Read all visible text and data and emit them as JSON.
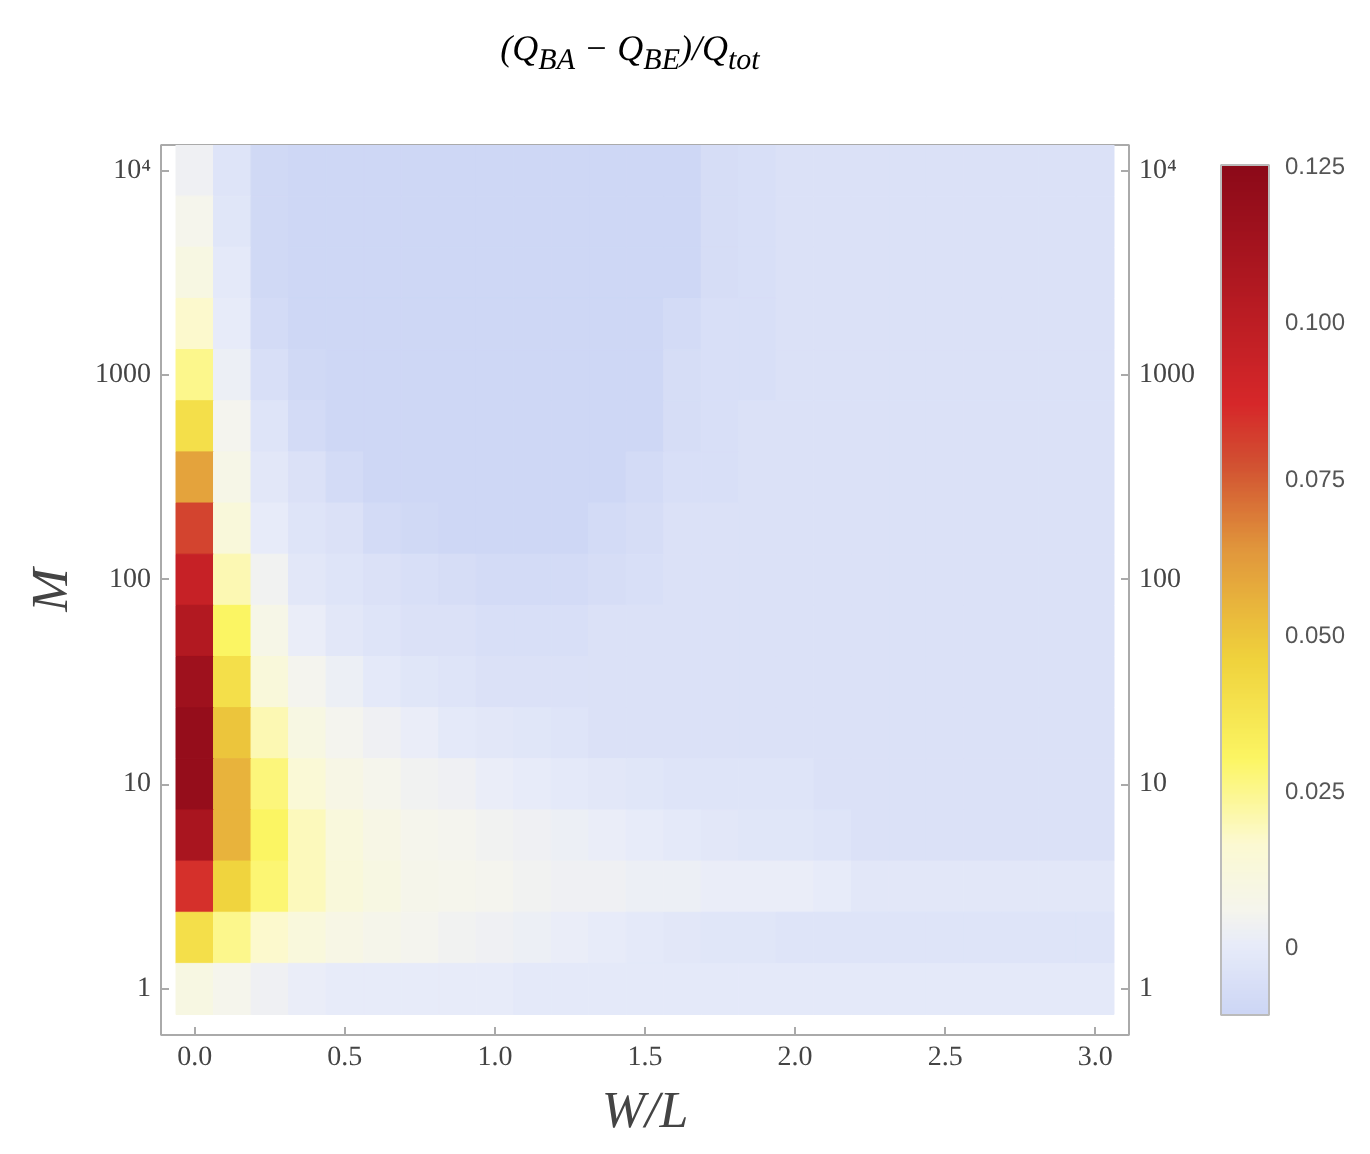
{
  "chart_data": {
    "type": "heatmap",
    "title": "(Q$_{BA}$ − Q$_{BE}$)/Q$_{tot}$",
    "xlabel": "W/L",
    "ylabel": "M",
    "categories": [
      "0.0",
      null,
      null,
      null,
      "0.5",
      null,
      null,
      null,
      "1.0",
      null,
      null,
      null,
      "1.5",
      null,
      null,
      null,
      "2.0",
      null,
      null,
      null,
      "2.5",
      null,
      null,
      null,
      "3.0"
    ],
    "y_categories": [
      "10⁴",
      null,
      null,
      null,
      "1000",
      null,
      null,
      null,
      "100",
      null,
      null,
      null,
      "10",
      null,
      null,
      null,
      "1"
    ],
    "y2_categories": [
      "10⁴",
      null,
      null,
      null,
      "1000",
      null,
      null,
      null,
      "100",
      null,
      null,
      null,
      "10",
      null,
      null,
      null,
      "1"
    ],
    "cells": [
      [
        0.003,
        -0.004,
        -0.009,
        -0.01,
        -0.01,
        -0.01,
        -0.01,
        -0.01,
        -0.01,
        -0.01,
        -0.01,
        -0.01,
        -0.01,
        -0.01,
        -0.007,
        -0.006,
        -0.005,
        -0.005,
        -0.005,
        -0.005,
        -0.005,
        -0.005,
        -0.005,
        -0.005,
        -0.005
      ],
      [
        0.006,
        -0.003,
        -0.009,
        -0.01,
        -0.01,
        -0.01,
        -0.01,
        -0.01,
        -0.01,
        -0.01,
        -0.01,
        -0.01,
        -0.01,
        -0.01,
        -0.007,
        -0.006,
        -0.005,
        -0.005,
        -0.005,
        -0.005,
        -0.005,
        -0.005,
        -0.005,
        -0.005,
        -0.005
      ],
      [
        0.01,
        -0.001,
        -0.009,
        -0.01,
        -0.01,
        -0.01,
        -0.01,
        -0.01,
        -0.01,
        -0.01,
        -0.01,
        -0.01,
        -0.01,
        -0.01,
        -0.007,
        -0.006,
        -0.005,
        -0.005,
        -0.005,
        -0.005,
        -0.005,
        -0.005,
        -0.005,
        -0.005,
        -0.005
      ],
      [
        0.017,
        0.0,
        -0.008,
        -0.01,
        -0.01,
        -0.01,
        -0.01,
        -0.01,
        -0.01,
        -0.01,
        -0.01,
        -0.01,
        -0.01,
        -0.008,
        -0.006,
        -0.006,
        -0.005,
        -0.005,
        -0.005,
        -0.005,
        -0.005,
        -0.005,
        -0.005,
        -0.005,
        -0.005
      ],
      [
        0.025,
        0.002,
        -0.006,
        -0.009,
        -0.01,
        -0.01,
        -0.01,
        -0.01,
        -0.01,
        -0.01,
        -0.01,
        -0.01,
        -0.01,
        -0.007,
        -0.006,
        -0.006,
        -0.005,
        -0.005,
        -0.005,
        -0.005,
        -0.005,
        -0.005,
        -0.005,
        -0.005,
        -0.005
      ],
      [
        0.04,
        0.005,
        -0.004,
        -0.008,
        -0.01,
        -0.01,
        -0.01,
        -0.01,
        -0.01,
        -0.01,
        -0.01,
        -0.01,
        -0.01,
        -0.007,
        -0.006,
        -0.005,
        -0.005,
        -0.005,
        -0.005,
        -0.005,
        -0.005,
        -0.005,
        -0.005,
        -0.005,
        -0.005
      ],
      [
        0.06,
        0.008,
        -0.002,
        -0.005,
        -0.008,
        -0.01,
        -0.01,
        -0.01,
        -0.01,
        -0.01,
        -0.01,
        -0.01,
        -0.008,
        -0.006,
        -0.006,
        -0.005,
        -0.005,
        -0.005,
        -0.005,
        -0.005,
        -0.005,
        -0.005,
        -0.005,
        -0.005,
        -0.005
      ],
      [
        0.08,
        0.013,
        0.0,
        -0.004,
        -0.005,
        -0.008,
        -0.009,
        -0.01,
        -0.01,
        -0.01,
        -0.01,
        -0.008,
        -0.007,
        -0.005,
        -0.005,
        -0.005,
        -0.005,
        -0.005,
        -0.005,
        -0.005,
        -0.005,
        -0.005,
        -0.005,
        -0.005,
        -0.005
      ],
      [
        0.095,
        0.02,
        0.004,
        -0.002,
        -0.004,
        -0.005,
        -0.006,
        -0.007,
        -0.008,
        -0.008,
        -0.008,
        -0.007,
        -0.006,
        -0.005,
        -0.005,
        -0.005,
        -0.005,
        -0.005,
        -0.005,
        -0.005,
        -0.005,
        -0.005,
        -0.005,
        -0.005,
        -0.005
      ],
      [
        0.105,
        0.03,
        0.008,
        0.001,
        -0.002,
        -0.004,
        -0.005,
        -0.005,
        -0.006,
        -0.006,
        -0.006,
        -0.005,
        -0.005,
        -0.005,
        -0.005,
        -0.005,
        -0.005,
        -0.005,
        -0.005,
        -0.005,
        -0.005,
        -0.005,
        -0.005,
        -0.005,
        -0.005
      ],
      [
        0.115,
        0.04,
        0.013,
        0.005,
        0.002,
        -0.001,
        -0.003,
        -0.004,
        -0.005,
        -0.005,
        -0.005,
        -0.005,
        -0.005,
        -0.005,
        -0.005,
        -0.005,
        -0.005,
        -0.005,
        -0.005,
        -0.005,
        -0.005,
        -0.005,
        -0.005,
        -0.005,
        -0.005
      ],
      [
        0.12,
        0.05,
        0.02,
        0.01,
        0.005,
        0.003,
        0.001,
        -0.001,
        -0.002,
        -0.003,
        -0.004,
        -0.005,
        -0.005,
        -0.005,
        -0.005,
        -0.005,
        -0.005,
        -0.005,
        -0.005,
        -0.005,
        -0.005,
        -0.005,
        -0.005,
        -0.005,
        -0.005
      ],
      [
        0.12,
        0.055,
        0.027,
        0.015,
        0.009,
        0.006,
        0.004,
        0.003,
        0.001,
        0.0,
        -0.001,
        -0.002,
        -0.003,
        -0.004,
        -0.004,
        -0.004,
        -0.004,
        -0.005,
        -0.005,
        -0.005,
        -0.005,
        -0.005,
        -0.005,
        -0.005,
        -0.005
      ],
      [
        0.11,
        0.055,
        0.03,
        0.019,
        0.012,
        0.009,
        0.006,
        0.005,
        0.004,
        0.003,
        0.002,
        0.001,
        0.0,
        -0.001,
        -0.002,
        -0.003,
        -0.003,
        -0.004,
        -0.005,
        -0.005,
        -0.005,
        -0.005,
        -0.005,
        -0.005,
        -0.005
      ],
      [
        0.085,
        0.045,
        0.028,
        0.019,
        0.013,
        0.01,
        0.007,
        0.006,
        0.005,
        0.004,
        0.003,
        0.003,
        0.002,
        0.002,
        0.001,
        0.001,
        0.001,
        0.0,
        -0.002,
        -0.002,
        -0.002,
        -0.002,
        -0.002,
        -0.002,
        -0.002
      ],
      [
        0.04,
        0.025,
        0.017,
        0.012,
        0.009,
        0.007,
        0.005,
        0.004,
        0.003,
        0.002,
        0.001,
        0.0,
        -0.001,
        -0.002,
        -0.003,
        -0.003,
        -0.004,
        -0.004,
        -0.004,
        -0.004,
        -0.004,
        -0.004,
        -0.004,
        -0.004,
        -0.004
      ],
      [
        0.01,
        0.006,
        0.003,
        0.001,
        0.0,
        0.0,
        0.0,
        0.0,
        0.0,
        -0.001,
        -0.001,
        -0.001,
        -0.001,
        -0.001,
        -0.001,
        -0.001,
        -0.001,
        -0.001,
        -0.001,
        -0.001,
        -0.001,
        -0.001,
        -0.001,
        -0.001,
        -0.001
      ]
    ],
    "clim": [
      -0.011,
      0.125
    ],
    "cticks": [
      0,
      {
        "value": 0.025,
        "label": "0.025"
      },
      {
        "value": 0.05,
        "label": "0.050"
      },
      {
        "value": 0.075,
        "label": "0.075"
      },
      {
        "value": 0.1,
        "label": "0.100"
      },
      0.125
    ]
  }
}
